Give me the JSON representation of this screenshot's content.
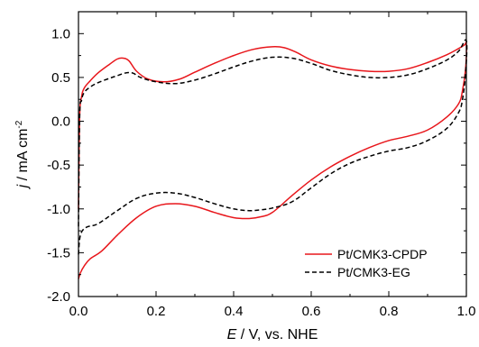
{
  "chart_data": {
    "type": "line",
    "xlabel": {
      "italic": "E",
      "rest": " / V, vs. NHE"
    },
    "ylabel": {
      "italic": "j",
      "rest": " / mA cm",
      "sup": "-2"
    },
    "xlim": [
      0.0,
      1.0
    ],
    "ylim": [
      -2.0,
      1.25
    ],
    "xticks": [
      {
        "value": 0.0,
        "label": "0.0"
      },
      {
        "value": 0.2,
        "label": "0.2"
      },
      {
        "value": 0.4,
        "label": "0.4"
      },
      {
        "value": 0.6,
        "label": "0.6"
      },
      {
        "value": 0.8,
        "label": "0.8"
      },
      {
        "value": 1.0,
        "label": "1.0"
      }
    ],
    "yticks": [
      {
        "value": 1.0,
        "label": "1.0"
      },
      {
        "value": 0.5,
        "label": "0.5"
      },
      {
        "value": 0.0,
        "label": "0.0"
      },
      {
        "value": -0.5,
        "label": "-0.5"
      },
      {
        "value": -1.0,
        "label": "-1.0"
      },
      {
        "value": -1.5,
        "label": "-1.5"
      },
      {
        "value": -2.0,
        "label": "-2.0"
      }
    ],
    "grid": false,
    "legend_position": "bottom-right",
    "series": [
      {
        "name": "Pt/CMK3-CPDP",
        "color": "#e8161b",
        "dash": "solid",
        "x": [
          0.0,
          0.003,
          0.008,
          0.015,
          0.03,
          0.05,
          0.08,
          0.1,
          0.115,
          0.13,
          0.15,
          0.18,
          0.22,
          0.26,
          0.3,
          0.35,
          0.4,
          0.45,
          0.5,
          0.53,
          0.56,
          0.6,
          0.65,
          0.7,
          0.75,
          0.8,
          0.85,
          0.9,
          0.95,
          0.98,
          0.995,
          1.0,
          0.998,
          0.99,
          0.98,
          0.95,
          0.9,
          0.85,
          0.8,
          0.75,
          0.7,
          0.65,
          0.6,
          0.55,
          0.5,
          0.47,
          0.44,
          0.4,
          0.35,
          0.3,
          0.25,
          0.2,
          0.15,
          0.1,
          0.06,
          0.03,
          0.015,
          0.005,
          0.0
        ],
        "y": [
          -1.0,
          0.05,
          0.28,
          0.38,
          0.46,
          0.55,
          0.65,
          0.71,
          0.72,
          0.69,
          0.57,
          0.48,
          0.45,
          0.48,
          0.56,
          0.66,
          0.75,
          0.82,
          0.85,
          0.84,
          0.79,
          0.7,
          0.63,
          0.59,
          0.57,
          0.57,
          0.6,
          0.67,
          0.76,
          0.83,
          0.87,
          0.88,
          0.6,
          0.35,
          0.2,
          0.05,
          -0.1,
          -0.17,
          -0.22,
          -0.3,
          -0.4,
          -0.52,
          -0.67,
          -0.85,
          -1.04,
          -1.09,
          -1.11,
          -1.1,
          -1.04,
          -0.97,
          -0.94,
          -0.97,
          -1.1,
          -1.3,
          -1.48,
          -1.57,
          -1.65,
          -1.73,
          -1.8
        ]
      },
      {
        "name": "Pt/CMK3-EG",
        "color": "#000000",
        "dash": "dashed",
        "x": [
          0.0,
          0.003,
          0.008,
          0.015,
          0.03,
          0.05,
          0.08,
          0.1,
          0.12,
          0.14,
          0.16,
          0.2,
          0.25,
          0.3,
          0.35,
          0.4,
          0.45,
          0.5,
          0.55,
          0.6,
          0.65,
          0.7,
          0.75,
          0.8,
          0.85,
          0.9,
          0.95,
          0.98,
          1.0,
          0.998,
          0.99,
          0.98,
          0.95,
          0.9,
          0.85,
          0.8,
          0.75,
          0.7,
          0.65,
          0.6,
          0.55,
          0.5,
          0.47,
          0.44,
          0.4,
          0.35,
          0.3,
          0.25,
          0.2,
          0.15,
          0.1,
          0.05,
          0.02,
          0.005,
          0.0
        ],
        "y": [
          -1.2,
          0.05,
          0.24,
          0.33,
          0.39,
          0.44,
          0.49,
          0.52,
          0.55,
          0.55,
          0.5,
          0.45,
          0.43,
          0.47,
          0.54,
          0.62,
          0.69,
          0.73,
          0.72,
          0.66,
          0.58,
          0.53,
          0.5,
          0.5,
          0.53,
          0.6,
          0.7,
          0.8,
          0.92,
          0.55,
          0.25,
          0.1,
          -0.08,
          -0.22,
          -0.3,
          -0.34,
          -0.4,
          -0.48,
          -0.6,
          -0.76,
          -0.92,
          -0.99,
          -1.01,
          -1.02,
          -1.0,
          -0.94,
          -0.87,
          -0.82,
          -0.82,
          -0.88,
          -1.02,
          -1.17,
          -1.21,
          -1.3,
          -1.52
        ]
      }
    ]
  }
}
